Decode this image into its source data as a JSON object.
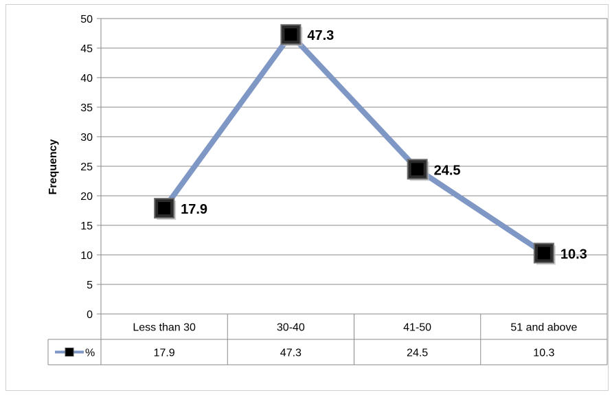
{
  "chart_data": {
    "type": "line",
    "categories": [
      "Less than 30",
      "30-40",
      "41-50",
      "51 and above"
    ],
    "series": [
      {
        "name": "%",
        "values": [
          17.9,
          47.3,
          24.5,
          10.3
        ],
        "color": "#7f97c4",
        "marker_color": "#000000"
      }
    ],
    "data_labels": [
      "17.9",
      "47.3",
      "24.5",
      "10.3"
    ],
    "ylabel": "Frequency",
    "xlabel": "",
    "ylim": [
      0,
      50
    ],
    "yticks": [
      0,
      5,
      10,
      15,
      20,
      25,
      30,
      35,
      40,
      45,
      50
    ],
    "grid": true,
    "data_table": {
      "legend_label": "%",
      "values": [
        "17.9",
        "47.3",
        "24.5",
        "10.3"
      ]
    }
  }
}
